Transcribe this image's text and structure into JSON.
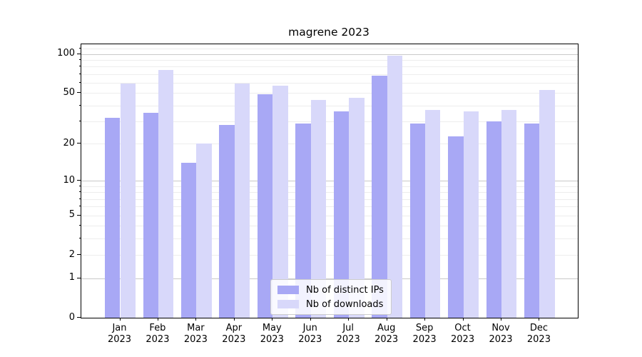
{
  "chart_data": {
    "type": "bar",
    "title": "magrene 2023",
    "categories": [
      "Jan 2023",
      "Feb 2023",
      "Mar 2023",
      "Apr 2023",
      "May 2023",
      "Jun 2023",
      "Jul 2023",
      "Aug 2023",
      "Sep 2023",
      "Oct 2023",
      "Nov 2023",
      "Dec 2023"
    ],
    "series": [
      {
        "name": "Nb of distinct IPs",
        "color": "#a8a8f5",
        "values": [
          32,
          35,
          14,
          28,
          49,
          29,
          36,
          68,
          29,
          23,
          30,
          29
        ]
      },
      {
        "name": "Nb of downloads",
        "color": "#d8d8fa",
        "values": [
          59,
          75,
          20,
          59,
          57,
          44,
          46,
          97,
          37,
          36,
          37,
          53
        ]
      }
    ],
    "yscale": "log1p",
    "yticks": [
      0,
      1,
      2,
      5,
      10,
      20,
      50,
      100
    ],
    "minor_gridlines": [
      2,
      3,
      4,
      5,
      6,
      7,
      8,
      9,
      20,
      30,
      40,
      50,
      60,
      70,
      80,
      90,
      110
    ],
    "major_gridlines": [
      1,
      10,
      100
    ],
    "ylim": [
      0,
      119
    ],
    "xlabel": "",
    "ylabel": "",
    "grid": "both",
    "legend": {
      "labels": [
        "Nb of distinct IPs",
        "Nb of downloads"
      ],
      "position": "lower-center-inside"
    }
  }
}
